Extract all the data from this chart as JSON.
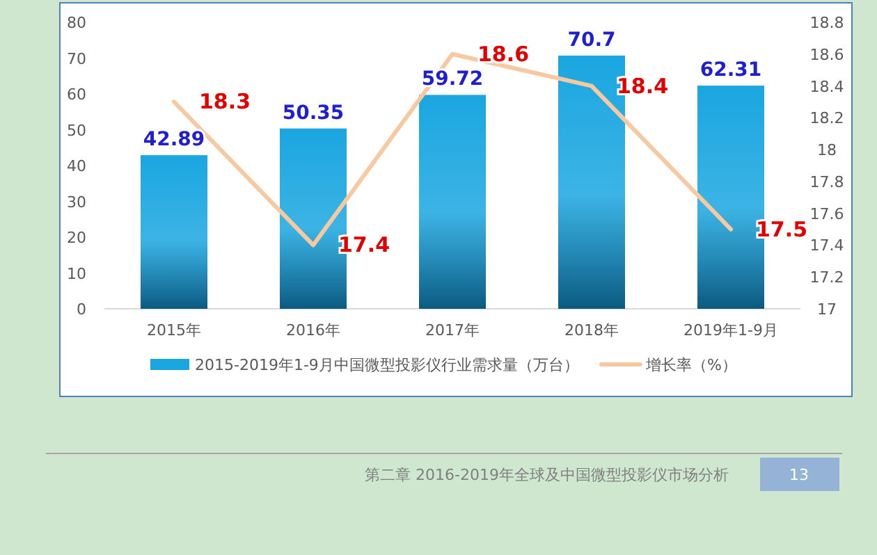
{
  "chart_data": {
    "type": "bar",
    "categories": [
      "2015年",
      "2016年",
      "2017年",
      "2018年",
      "2019年1-9月"
    ],
    "series": [
      {
        "name": "2015-2019年1-9月中国微型投影仪行业需求量（万台）",
        "color": "#1aa6e0",
        "values": [
          42.89,
          50.35,
          59.72,
          70.7,
          62.31
        ]
      },
      {
        "name": "增长率（%）",
        "type": "line",
        "axis": "y2",
        "color": "#f8c9a0",
        "values": [
          18.3,
          17.4,
          18.6,
          18.4,
          17.5
        ]
      }
    ],
    "ylim": [
      0,
      80
    ],
    "yticks": [
      0,
      10,
      20,
      30,
      40,
      50,
      60,
      70,
      80
    ],
    "y2lim": [
      17,
      18.8
    ],
    "y2ticks": [
      {
        "value": 17,
        "label": "17"
      },
      {
        "value": 17.2,
        "label": "17.2"
      },
      {
        "value": 17.4,
        "label": "17.4"
      },
      {
        "value": 17.6,
        "label": "17.6"
      },
      {
        "value": 17.8,
        "label": "17.8"
      },
      {
        "value": 18,
        "label": "18"
      },
      {
        "value": 18.2,
        "label": "18.2"
      },
      {
        "value": 18.4,
        "label": "18.4"
      },
      {
        "value": 18.6,
        "label": "18.6"
      },
      {
        "value": 18.8,
        "label": "18.8"
      }
    ],
    "data_labels": true,
    "legend": "bottom",
    "annotations": [
      "第二章 2016-2019年全球及中国微型投影仪市场分析",
      "13"
    ]
  }
}
